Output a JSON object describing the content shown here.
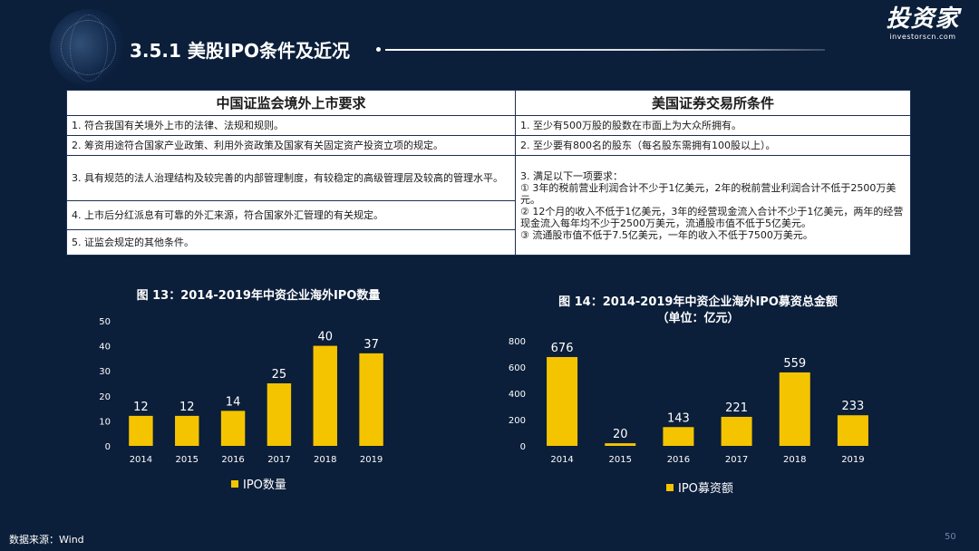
{
  "header": {
    "title": "3.5.1 美股IPO条件及近况",
    "logo_main": "投资家",
    "logo_sub": "investorscn.com"
  },
  "table": {
    "headers": [
      "中国证监会境外上市要求",
      "美国证券交易所条件"
    ],
    "left": [
      "1. 符合我国有关境外上市的法律、法规和规则。",
      "2. 筹资用途符合国家产业政策、利用外资政策及国家有关固定资产投资立项的规定。",
      "3. 具有规范的法人治理结构及较完善的内部管理制度，有较稳定的高级管理层及较高的管理水平。",
      "4. 上市后分红派息有可靠的外汇来源，符合国家外汇管理的有关规定。",
      "5. 证监会规定的其他条件。"
    ],
    "right": [
      "1. 至少有500万股的股数在市面上为大众所拥有。",
      "2. 至少要有800名的股东（每名股东需拥有100股以上）。"
    ],
    "right_item3": {
      "intro": "3. 满足以下一项要求：",
      "options": [
        "① 3年的税前营业利润合计不少于1亿美元，2年的税前营业利润合计不低于2500万美元。",
        "② 12个月的收入不低于1亿美元，3年的经营现金流入合计不少于1亿美元，两年的经营现金流入每年均不少于2500万美元，流通股市值不低于5亿美元。",
        "③ 流通股市值不低于7.5亿美元，一年的收入不低于7500万美元。"
      ]
    }
  },
  "chart_data": [
    {
      "type": "bar",
      "title": "图 13：2014-2019年中资企业海外IPO数量",
      "categories": [
        "2014",
        "2015",
        "2016",
        "2017",
        "2018",
        "2019"
      ],
      "series": [
        {
          "name": "IPO数量",
          "values": [
            12,
            12,
            14,
            25,
            40,
            37
          ]
        }
      ],
      "ylim": [
        0,
        50
      ],
      "yticks": [
        0,
        10,
        20,
        30,
        40,
        50
      ],
      "color": "#f5c400",
      "legend": "bottom"
    },
    {
      "type": "bar",
      "title": "图 14：2014-2019年中资企业海外IPO募资总金额",
      "subtitle": "（单位：亿元）",
      "categories": [
        "2014",
        "2015",
        "2016",
        "2017",
        "2018",
        "2019"
      ],
      "series": [
        {
          "name": "IPO募资额",
          "values": [
            676,
            20,
            143,
            221,
            559,
            233
          ]
        }
      ],
      "ylim": [
        0,
        800
      ],
      "yticks": [
        0,
        200,
        400,
        600,
        800
      ],
      "color": "#f5c400",
      "legend": "bottom"
    }
  ],
  "footer": {
    "source": "数据来源：Wind",
    "page": "50"
  }
}
